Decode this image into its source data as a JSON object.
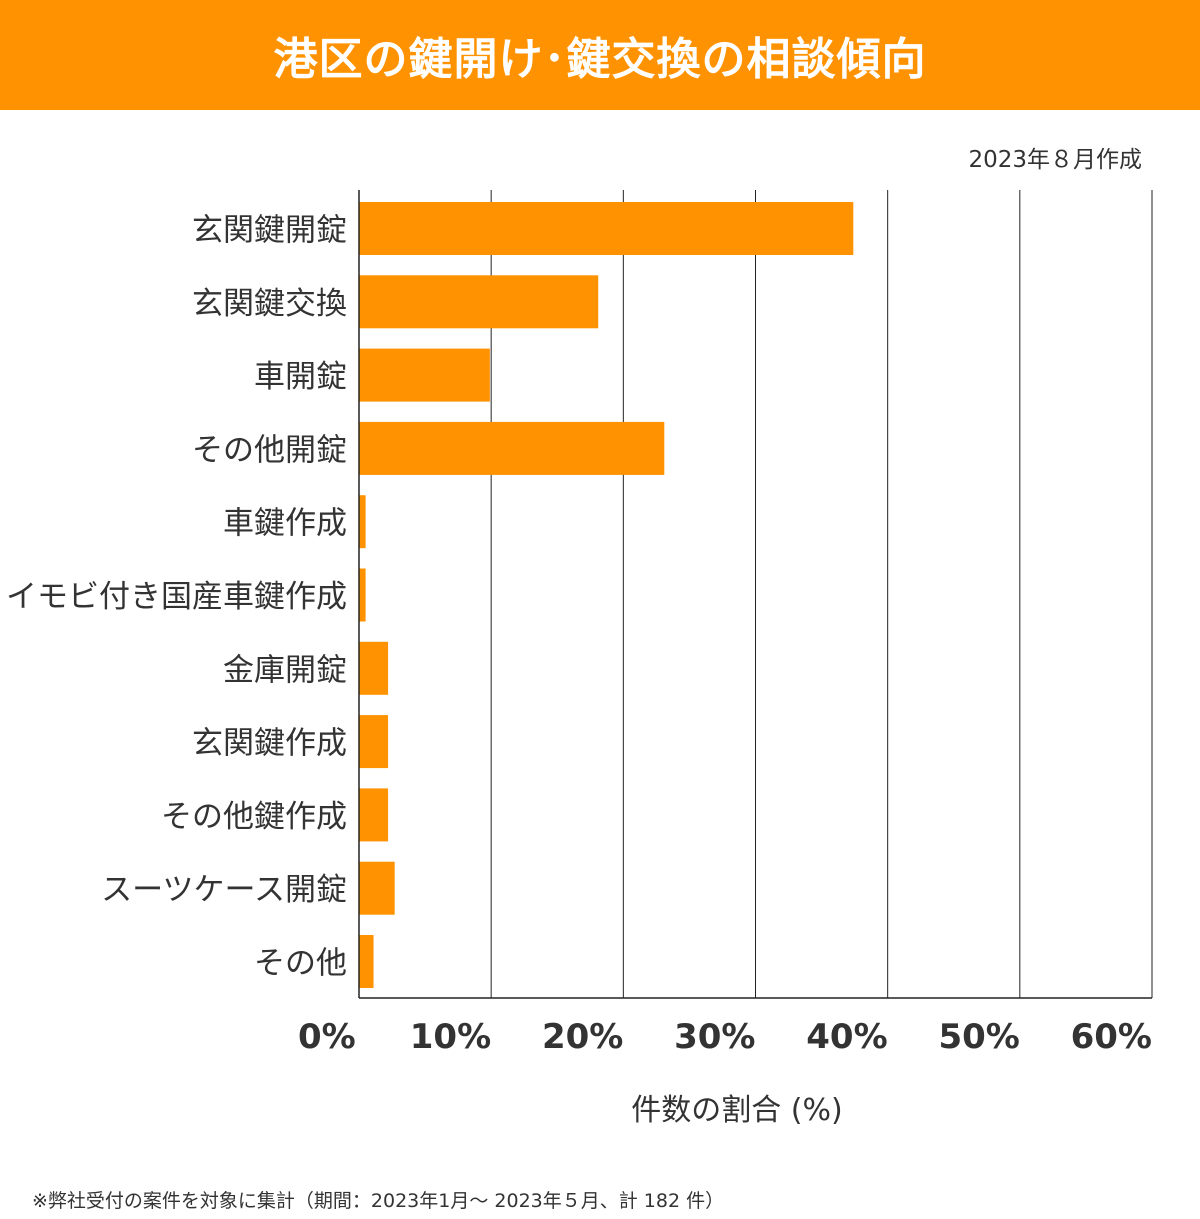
{
  "header": {
    "title": "港区の鍵開け･鍵交換の相談傾向",
    "bg_color": "#FF9200"
  },
  "date_label": "2023年８月作成",
  "footnote": "※弊社受付の案件を対象に集計（期間：2023年1月～ 2023年５月、計 182 件）",
  "chart_data": {
    "type": "bar",
    "orientation": "horizontal",
    "title": "港区の鍵開け･鍵交換の相談傾向",
    "xlabel": "件数の割合 (%)",
    "ylabel": "",
    "xlim": [
      0,
      60
    ],
    "ticks": [
      0,
      10,
      20,
      30,
      40,
      50,
      60
    ],
    "tick_labels": [
      "0%",
      "10%",
      "20%",
      "30%",
      "40%",
      "50%",
      "60%"
    ],
    "grid": true,
    "bar_color": "#FF9200",
    "categories": [
      "玄関鍵開錠",
      "玄関鍵交換",
      "車開錠",
      "その他開錠",
      "車鍵作成",
      "イモビ付き国産車鍵作成",
      "金庫開錠",
      "玄関鍵作成",
      "その他鍵作成",
      "スーツケース開錠",
      "その他"
    ],
    "values": [
      37.4,
      18.1,
      9.9,
      23.1,
      0.5,
      0.5,
      2.2,
      2.2,
      2.2,
      2.7,
      1.1
    ]
  }
}
